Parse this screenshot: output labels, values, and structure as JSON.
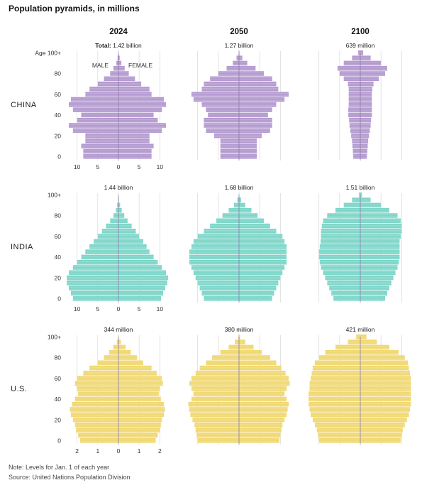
{
  "title": "Population pyramids, in millions",
  "years": [
    "2024",
    "2050",
    "2100"
  ],
  "total_prefix": "Total:",
  "age_top_label": "Age 100+",
  "labels": {
    "male": "MALE",
    "female": "FEMALE"
  },
  "note": "Note: Levels for Jan. 1 of each year",
  "source": "Source: United Nations Population Division",
  "colors": {
    "China": "#b49ad0",
    "India": "#7dd6c9",
    "U.S.": "#f0d872",
    "axis_line": "#8a7aa8",
    "grid": "#d6d6d6"
  },
  "chart_data": [
    {
      "type": "population-pyramid",
      "country": "CHINA",
      "year": "2024",
      "total": "1.42 billion",
      "x_ticks": [
        "10",
        "5",
        "0",
        "5",
        "10"
      ],
      "xlim": [
        -12,
        12
      ],
      "y_ticks": [
        "0",
        "20",
        "40",
        "60",
        "80",
        "100+"
      ],
      "ages": [
        0,
        5,
        10,
        15,
        20,
        25,
        30,
        35,
        40,
        45,
        50,
        55,
        60,
        65,
        70,
        75,
        80,
        85,
        90,
        95,
        100
      ],
      "male": [
        8.5,
        8.5,
        9.0,
        8.0,
        8.0,
        11.0,
        12.0,
        10.0,
        9.0,
        11.0,
        12.0,
        11.5,
        8.0,
        7.0,
        5.0,
        3.5,
        2.0,
        1.2,
        0.5,
        0.2,
        0.05
      ],
      "female": [
        8.0,
        8.0,
        8.5,
        7.5,
        7.5,
        10.5,
        11.5,
        9.5,
        8.5,
        10.5,
        11.5,
        11.0,
        8.0,
        7.5,
        5.5,
        4.0,
        2.5,
        1.5,
        0.7,
        0.3,
        0.05
      ]
    },
    {
      "type": "population-pyramid",
      "country": "CHINA",
      "year": "2050",
      "total": "1.27 billion",
      "xlim": [
        -12,
        12
      ],
      "ages": [
        0,
        5,
        10,
        15,
        20,
        25,
        30,
        35,
        40,
        45,
        50,
        55,
        60,
        65,
        70,
        75,
        80,
        85,
        90,
        95,
        100
      ],
      "male": [
        4.5,
        4.5,
        4.5,
        4.5,
        6.0,
        8.0,
        8.5,
        8.5,
        7.5,
        8.0,
        9.0,
        11.0,
        11.5,
        9.0,
        8.5,
        7.0,
        5.0,
        3.0,
        1.5,
        0.6,
        0.1
      ],
      "female": [
        4.3,
        4.3,
        4.3,
        4.3,
        5.5,
        7.5,
        8.0,
        8.0,
        7.0,
        8.0,
        9.0,
        11.0,
        12.0,
        9.5,
        9.0,
        8.0,
        6.0,
        4.0,
        2.0,
        0.8,
        0.1
      ]
    },
    {
      "type": "population-pyramid",
      "country": "CHINA",
      "year": "2100",
      "total": "639 million",
      "xlim": [
        -12,
        12
      ],
      "ages": [
        0,
        5,
        10,
        15,
        20,
        25,
        30,
        35,
        40,
        45,
        50,
        55,
        60,
        65,
        70,
        75,
        80,
        85,
        90,
        95,
        100
      ],
      "male": [
        1.7,
        1.8,
        1.9,
        2.0,
        2.2,
        2.4,
        2.6,
        2.7,
        2.9,
        2.9,
        2.8,
        2.8,
        2.8,
        2.8,
        3.0,
        4.0,
        5.0,
        5.5,
        4.0,
        2.0,
        0.5
      ],
      "female": [
        1.6,
        1.7,
        1.8,
        1.9,
        2.1,
        2.3,
        2.5,
        2.6,
        2.8,
        2.8,
        2.8,
        2.8,
        2.8,
        2.9,
        3.2,
        4.5,
        6.0,
        6.5,
        5.0,
        2.5,
        0.7
      ]
    },
    {
      "type": "population-pyramid",
      "country": "INDIA",
      "year": "2024",
      "total": "1.44 billion",
      "x_ticks": [
        "10",
        "5",
        "0",
        "5",
        "10"
      ],
      "xlim": [
        -12,
        12
      ],
      "y_ticks": [
        "0",
        "20",
        "40",
        "60",
        "80",
        "100+"
      ],
      "ages": [
        0,
        5,
        10,
        15,
        20,
        25,
        30,
        35,
        40,
        45,
        50,
        55,
        60,
        65,
        70,
        75,
        80,
        85,
        90,
        95,
        100
      ],
      "male": [
        11.0,
        11.5,
        12.0,
        12.5,
        12.5,
        12.0,
        11.0,
        10.0,
        9.0,
        8.0,
        7.0,
        6.0,
        5.0,
        4.0,
        3.0,
        2.0,
        1.2,
        0.6,
        0.3,
        0.1,
        0.02
      ],
      "female": [
        10.3,
        10.8,
        11.3,
        11.8,
        12.0,
        11.5,
        10.5,
        9.5,
        8.5,
        7.5,
        6.8,
        6.0,
        5.0,
        4.2,
        3.2,
        2.2,
        1.4,
        0.8,
        0.4,
        0.1,
        0.02
      ]
    },
    {
      "type": "population-pyramid",
      "country": "INDIA",
      "year": "2050",
      "total": "1.68 billion",
      "xlim": [
        -12,
        12
      ],
      "ages": [
        0,
        5,
        10,
        15,
        20,
        25,
        30,
        35,
        40,
        45,
        50,
        55,
        60,
        65,
        70,
        75,
        80,
        85,
        90,
        95,
        100
      ],
      "male": [
        8.5,
        9.0,
        9.5,
        10.0,
        10.5,
        11.0,
        11.5,
        12.0,
        12.0,
        12.0,
        11.5,
        11.0,
        10.0,
        8.5,
        7.0,
        5.5,
        4.0,
        2.5,
        1.2,
        0.4,
        0.05
      ],
      "female": [
        8.0,
        8.5,
        9.0,
        9.5,
        10.0,
        10.5,
        11.0,
        11.5,
        11.5,
        11.5,
        11.5,
        11.0,
        10.5,
        9.0,
        7.5,
        6.0,
        4.5,
        3.0,
        1.5,
        0.5,
        0.05
      ]
    },
    {
      "type": "population-pyramid",
      "country": "INDIA",
      "year": "2100",
      "total": "1.51 billion",
      "xlim": [
        -12,
        12
      ],
      "ages": [
        0,
        5,
        10,
        15,
        20,
        25,
        30,
        35,
        40,
        45,
        50,
        55,
        60,
        65,
        70,
        75,
        80,
        85,
        90,
        95,
        100
      ],
      "male": [
        6.5,
        7.0,
        7.5,
        8.0,
        8.5,
        9.0,
        9.5,
        9.8,
        10.0,
        10.0,
        9.8,
        9.6,
        9.5,
        9.5,
        9.3,
        9.0,
        8.0,
        6.0,
        4.0,
        2.0,
        0.3
      ],
      "female": [
        6.0,
        6.5,
        7.0,
        7.5,
        8.0,
        8.5,
        9.0,
        9.3,
        9.5,
        9.5,
        9.5,
        9.5,
        9.8,
        10.0,
        10.0,
        9.8,
        9.0,
        7.0,
        5.0,
        2.5,
        0.4
      ]
    },
    {
      "type": "population-pyramid",
      "country": "U.S.",
      "year": "2024",
      "total": "344 million",
      "x_ticks": [
        "2",
        "1",
        "0",
        "1",
        "2"
      ],
      "xlim": [
        -2.4,
        2.4
      ],
      "y_ticks": [
        "0",
        "20",
        "40",
        "60",
        "80",
        "100+"
      ],
      "ages": [
        0,
        5,
        10,
        15,
        20,
        25,
        30,
        35,
        40,
        45,
        50,
        55,
        60,
        65,
        70,
        75,
        80,
        85,
        90,
        95,
        100
      ],
      "male": [
        1.85,
        1.95,
        2.05,
        2.1,
        2.2,
        2.3,
        2.35,
        2.25,
        2.1,
        1.95,
        2.0,
        2.1,
        2.0,
        1.7,
        1.4,
        1.0,
        0.7,
        0.45,
        0.25,
        0.08,
        0.01
      ],
      "female": [
        1.8,
        1.9,
        2.0,
        2.05,
        2.1,
        2.2,
        2.25,
        2.2,
        2.05,
        1.95,
        2.0,
        2.15,
        2.1,
        1.85,
        1.6,
        1.2,
        0.9,
        0.6,
        0.35,
        0.12,
        0.02
      ]
    },
    {
      "type": "population-pyramid",
      "country": "U.S.",
      "year": "2050",
      "total": "380 million",
      "xlim": [
        -2.4,
        2.4
      ],
      "ages": [
        0,
        5,
        10,
        15,
        20,
        25,
        30,
        35,
        40,
        45,
        50,
        55,
        60,
        65,
        70,
        75,
        80,
        85,
        90,
        95,
        100
      ],
      "male": [
        2.0,
        2.05,
        2.1,
        2.15,
        2.25,
        2.35,
        2.4,
        2.45,
        2.3,
        2.2,
        2.3,
        2.4,
        2.3,
        2.1,
        1.9,
        1.6,
        1.3,
        0.9,
        0.5,
        0.2,
        0.03
      ],
      "female": [
        1.95,
        2.0,
        2.05,
        2.1,
        2.2,
        2.3,
        2.35,
        2.4,
        2.3,
        2.2,
        2.3,
        2.45,
        2.4,
        2.25,
        2.05,
        1.8,
        1.5,
        1.1,
        0.7,
        0.3,
        0.05
      ]
    },
    {
      "type": "population-pyramid",
      "country": "U.S.",
      "year": "2100",
      "total": "421 million",
      "xlim": [
        -2.4,
        2.4
      ],
      "ages": [
        0,
        5,
        10,
        15,
        20,
        25,
        30,
        35,
        40,
        45,
        50,
        55,
        60,
        65,
        70,
        75,
        80,
        85,
        90,
        95,
        100
      ],
      "male": [
        2.0,
        2.05,
        2.1,
        2.2,
        2.3,
        2.4,
        2.45,
        2.5,
        2.5,
        2.5,
        2.45,
        2.45,
        2.4,
        2.35,
        2.3,
        2.2,
        2.0,
        1.7,
        1.2,
        0.6,
        0.2
      ],
      "female": [
        1.95,
        2.0,
        2.05,
        2.15,
        2.25,
        2.35,
        2.4,
        2.45,
        2.45,
        2.45,
        2.45,
        2.45,
        2.45,
        2.4,
        2.35,
        2.3,
        2.15,
        1.85,
        1.4,
        0.8,
        0.3
      ]
    }
  ]
}
